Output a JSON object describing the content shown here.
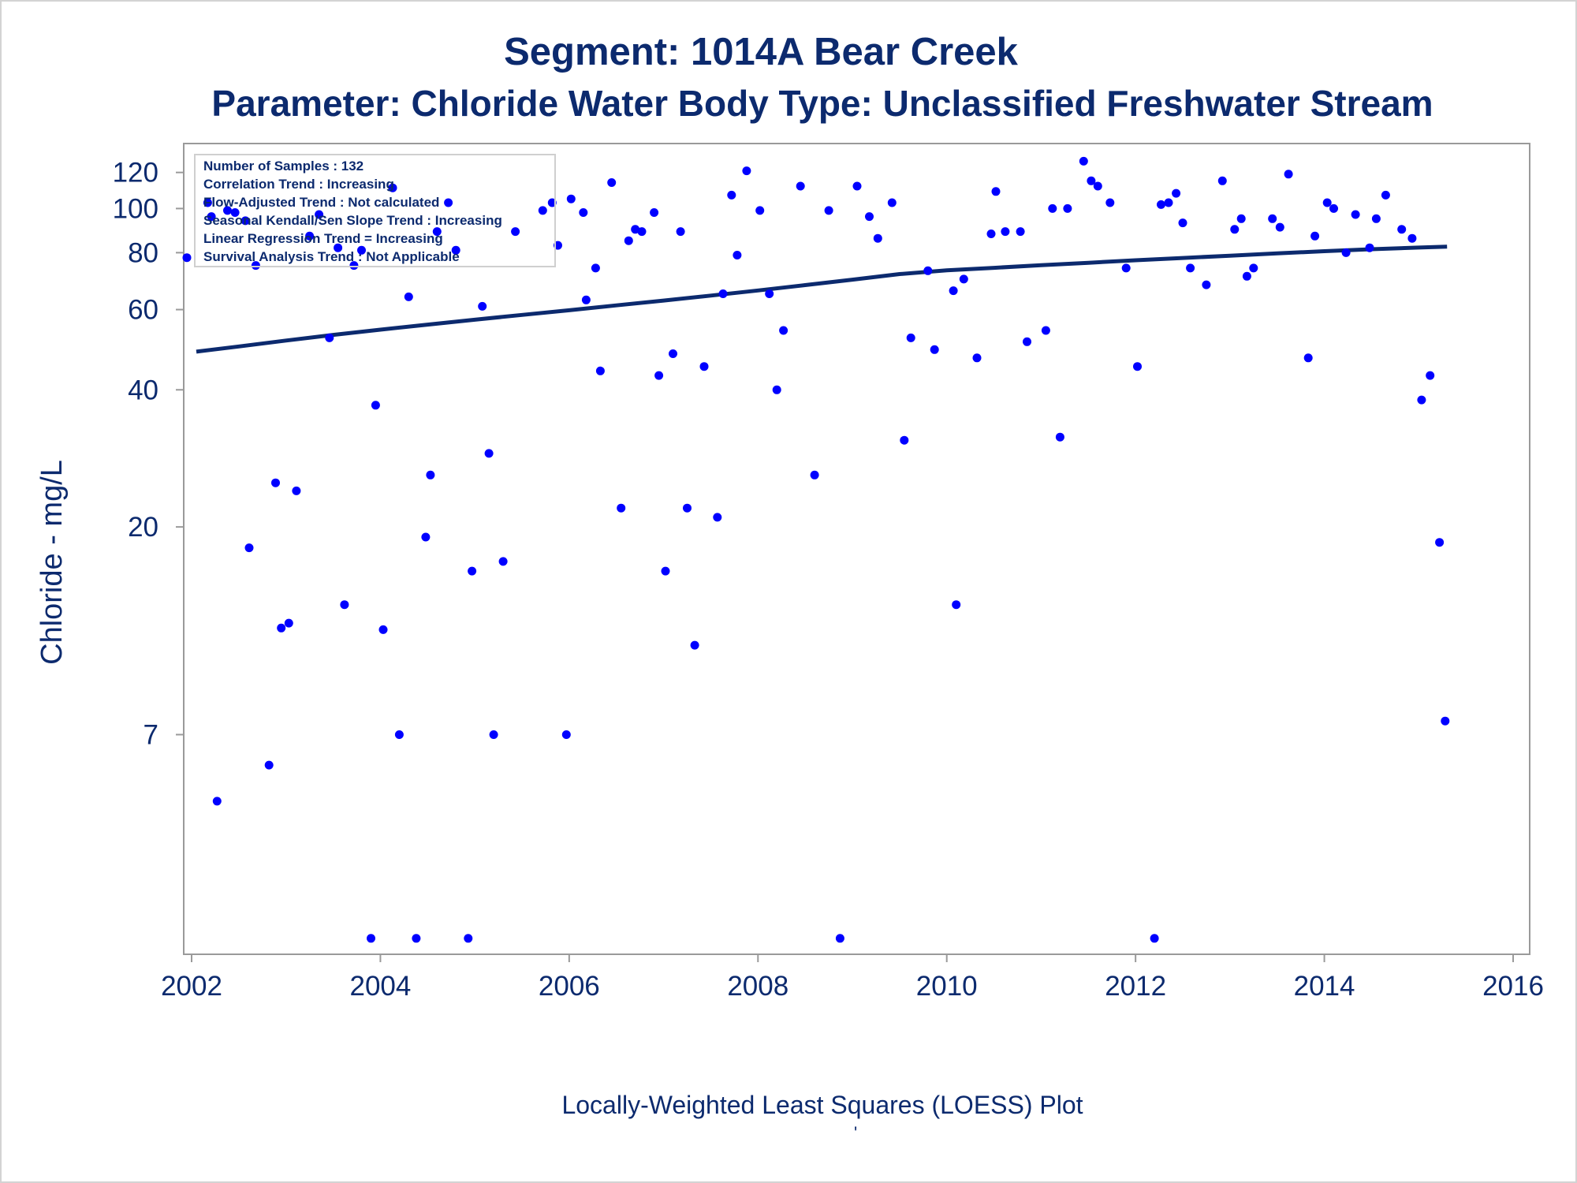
{
  "chart_data": {
    "type": "scatter",
    "title": "Segment: 1014A  Bear Creek",
    "subtitle": "Parameter: Chloride   Water Body Type: Unclassified Freshwater Stream",
    "ylabel": "Chloride - mg/L",
    "xlabel": "",
    "footnote": "Locally-Weighted Least Squares (LOESS) Plot",
    "footnote2": "'",
    "x_scale": "year",
    "y_scale": "log",
    "xlim": [
      2002,
      2016
    ],
    "ylim": [
      2.4,
      140
    ],
    "x_ticks": [
      2002,
      2004,
      2006,
      2008,
      2010,
      2012,
      2014,
      2016
    ],
    "y_ticks": [
      7,
      20,
      40,
      60,
      80,
      100,
      120
    ],
    "info_box": [
      "Number of Samples : 132",
      "Correlation Trend : Increasing",
      "Flow-Adjusted Trend : Not calculated",
      "Seasonal Kendall/Sen Slope Trend : Increasing",
      "Linear Regression Trend = Increasing",
      "Survival Analysis Trend : Not Applicable"
    ],
    "colors": {
      "points": "#0000ff",
      "line": "#0c2a6e",
      "text": "#0c2a6e"
    },
    "series": [
      {
        "type": "scatter",
        "points": [
          [
            2001.95,
            78
          ],
          [
            2002.17,
            103
          ],
          [
            2002.21,
            96
          ],
          [
            2002.27,
            5
          ],
          [
            2002.38,
            99
          ],
          [
            2002.46,
            98
          ],
          [
            2002.57,
            94
          ],
          [
            2002.61,
            18
          ],
          [
            2002.68,
            75
          ],
          [
            2002.82,
            6
          ],
          [
            2002.89,
            25
          ],
          [
            2002.95,
            12
          ],
          [
            2003.03,
            12.3
          ],
          [
            2003.11,
            24
          ],
          [
            2003.25,
            87
          ],
          [
            2003.35,
            97
          ],
          [
            2003.46,
            52
          ],
          [
            2003.55,
            82
          ],
          [
            2003.62,
            13.5
          ],
          [
            2003.72,
            75
          ],
          [
            2003.8,
            81
          ],
          [
            2003.9,
            2.5
          ],
          [
            2003.95,
            37
          ],
          [
            2004.03,
            11.9
          ],
          [
            2004.13,
            111
          ],
          [
            2004.2,
            7
          ],
          [
            2004.3,
            64
          ],
          [
            2004.38,
            2.5
          ],
          [
            2004.48,
            19
          ],
          [
            2004.53,
            26
          ],
          [
            2004.6,
            89
          ],
          [
            2004.72,
            103
          ],
          [
            2004.8,
            81
          ],
          [
            2004.93,
            2.5
          ],
          [
            2004.97,
            16
          ],
          [
            2005.08,
            61
          ],
          [
            2005.15,
            29
          ],
          [
            2005.2,
            7
          ],
          [
            2005.3,
            16.8
          ],
          [
            2005.43,
            89
          ],
          [
            2005.72,
            99
          ],
          [
            2005.82,
            103
          ],
          [
            2005.88,
            83
          ],
          [
            2005.97,
            7
          ],
          [
            2006.02,
            105
          ],
          [
            2006.15,
            98
          ],
          [
            2006.18,
            63
          ],
          [
            2006.28,
            74
          ],
          [
            2006.33,
            44
          ],
          [
            2006.45,
            114
          ],
          [
            2006.55,
            22
          ],
          [
            2006.63,
            85
          ],
          [
            2006.7,
            90
          ],
          [
            2006.77,
            89
          ],
          [
            2006.9,
            98
          ],
          [
            2006.95,
            43
          ],
          [
            2007.02,
            16
          ],
          [
            2007.1,
            48
          ],
          [
            2007.18,
            89
          ],
          [
            2007.25,
            22
          ],
          [
            2007.33,
            11
          ],
          [
            2007.43,
            45
          ],
          [
            2007.57,
            21
          ],
          [
            2007.63,
            65
          ],
          [
            2007.72,
            107
          ],
          [
            2007.78,
            79
          ],
          [
            2007.88,
            121
          ],
          [
            2008.02,
            99
          ],
          [
            2008.12,
            65
          ],
          [
            2008.2,
            40
          ],
          [
            2008.27,
            54
          ],
          [
            2008.45,
            112
          ],
          [
            2008.6,
            26
          ],
          [
            2008.75,
            99
          ],
          [
            2008.87,
            2.5
          ],
          [
            2009.05,
            112
          ],
          [
            2009.18,
            96
          ],
          [
            2009.27,
            86
          ],
          [
            2009.42,
            103
          ],
          [
            2009.55,
            31
          ],
          [
            2009.62,
            52
          ],
          [
            2009.8,
            73
          ],
          [
            2009.87,
            49
          ],
          [
            2010.07,
            66
          ],
          [
            2010.1,
            13.5
          ],
          [
            2010.18,
            70
          ],
          [
            2010.32,
            47
          ],
          [
            2010.47,
            88
          ],
          [
            2010.52,
            109
          ],
          [
            2010.62,
            89
          ],
          [
            2010.78,
            89
          ],
          [
            2010.85,
            51
          ],
          [
            2011.05,
            54
          ],
          [
            2011.12,
            100
          ],
          [
            2011.2,
            31.5
          ],
          [
            2011.28,
            100
          ],
          [
            2011.45,
            127
          ],
          [
            2011.53,
            115
          ],
          [
            2011.6,
            112
          ],
          [
            2011.73,
            103
          ],
          [
            2011.9,
            74
          ],
          [
            2012.02,
            45
          ],
          [
            2012.2,
            2.5
          ],
          [
            2012.27,
            102
          ],
          [
            2012.35,
            103
          ],
          [
            2012.43,
            108
          ],
          [
            2012.5,
            93
          ],
          [
            2012.58,
            74
          ],
          [
            2012.75,
            68
          ],
          [
            2012.92,
            115
          ],
          [
            2013.05,
            90
          ],
          [
            2013.12,
            95
          ],
          [
            2013.18,
            71
          ],
          [
            2013.25,
            74
          ],
          [
            2013.45,
            95
          ],
          [
            2013.53,
            91
          ],
          [
            2013.62,
            119
          ],
          [
            2013.83,
            47
          ],
          [
            2013.9,
            87
          ],
          [
            2014.03,
            103
          ],
          [
            2014.1,
            100
          ],
          [
            2014.23,
            80
          ],
          [
            2014.33,
            97
          ],
          [
            2014.48,
            82
          ],
          [
            2014.55,
            95
          ],
          [
            2014.65,
            107
          ],
          [
            2014.82,
            90
          ],
          [
            2014.93,
            86
          ],
          [
            2015.03,
            38
          ],
          [
            2015.12,
            43
          ],
          [
            2015.22,
            18.5
          ],
          [
            2015.28,
            7.5
          ]
        ]
      },
      {
        "type": "line",
        "points": [
          [
            2002.05,
            48.5
          ],
          [
            2002.5,
            49.8
          ],
          [
            2003.0,
            51.3
          ],
          [
            2003.5,
            52.8
          ],
          [
            2004.0,
            54.2
          ],
          [
            2004.5,
            55.6
          ],
          [
            2005.0,
            57.0
          ],
          [
            2005.5,
            58.4
          ],
          [
            2006.0,
            59.8
          ],
          [
            2006.5,
            61.3
          ],
          [
            2007.0,
            62.8
          ],
          [
            2007.5,
            64.4
          ],
          [
            2008.0,
            66.1
          ],
          [
            2008.5,
            67.9
          ],
          [
            2009.0,
            69.8
          ],
          [
            2009.5,
            71.8
          ],
          [
            2010.0,
            73.2
          ],
          [
            2010.5,
            74.1
          ],
          [
            2011.0,
            75.1
          ],
          [
            2011.5,
            76.0
          ],
          [
            2012.0,
            77.0
          ],
          [
            2012.5,
            77.9
          ],
          [
            2013.0,
            78.8
          ],
          [
            2013.5,
            79.7
          ],
          [
            2014.0,
            80.6
          ],
          [
            2014.5,
            81.4
          ],
          [
            2015.0,
            82.1
          ],
          [
            2015.3,
            82.5
          ]
        ]
      }
    ]
  }
}
